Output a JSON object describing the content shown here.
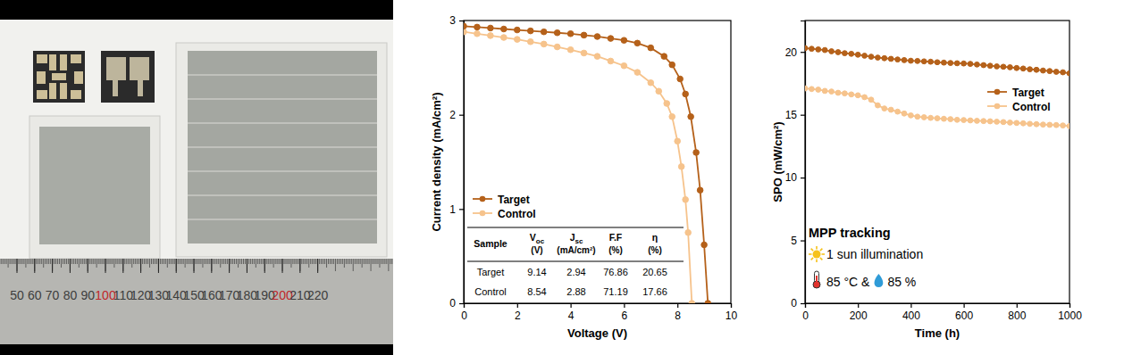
{
  "photo": {
    "xlim": [
      40.4,
      262.6
    ],
    "ruler_labels": [
      50,
      60,
      70,
      80,
      90,
      100,
      110,
      120,
      130,
      140,
      150,
      160,
      170,
      180,
      190,
      200,
      210,
      220
    ]
  },
  "chart_data": [
    {
      "type": "line",
      "xlabel": "Voltage (V)",
      "ylabel": "Current density (mA/cm²)",
      "xlim": [
        0,
        10
      ],
      "xticks": [
        0,
        2,
        4,
        6,
        8,
        10
      ],
      "ylim": [
        0,
        3
      ],
      "yticks": [
        0,
        1,
        2,
        3
      ],
      "marker": "circle",
      "line_style": "solid",
      "legend": "upper left",
      "series": [
        {
          "name": "Target",
          "color": "#b5611a",
          "x": [
            0,
            0.5,
            1,
            1.5,
            2,
            2.5,
            3,
            3.5,
            4,
            4.5,
            5,
            5.5,
            6,
            6.5,
            7,
            7.5,
            7.8,
            8.1,
            8.3,
            8.5,
            8.7,
            8.85,
            9.0,
            9.14
          ],
          "values": [
            2.94,
            2.93,
            2.92,
            2.91,
            2.9,
            2.89,
            2.88,
            2.87,
            2.86,
            2.845,
            2.83,
            2.81,
            2.79,
            2.76,
            2.71,
            2.62,
            2.53,
            2.38,
            2.22,
            1.98,
            1.6,
            1.2,
            0.62,
            0
          ]
        },
        {
          "name": "Control",
          "color": "#f6c38c",
          "x": [
            0,
            0.5,
            1,
            1.5,
            2,
            2.5,
            3,
            3.5,
            4,
            4.5,
            5,
            5.5,
            6,
            6.5,
            7,
            7.3,
            7.6,
            7.8,
            8.0,
            8.15,
            8.3,
            8.4,
            8.54
          ],
          "values": [
            2.88,
            2.86,
            2.84,
            2.82,
            2.8,
            2.775,
            2.75,
            2.72,
            2.69,
            2.655,
            2.62,
            2.57,
            2.52,
            2.45,
            2.34,
            2.25,
            2.12,
            1.98,
            1.72,
            1.45,
            1.1,
            0.75,
            0
          ]
        }
      ],
      "table": {
        "columns": [
          {
            "label": "Sample"
          },
          {
            "label": "V",
            "sub": "oc",
            "unit": "(V)"
          },
          {
            "label": "J",
            "sub": "sc",
            "unit": "(mA/cm²)"
          },
          {
            "label": "F.F",
            "unit": "(%)"
          },
          {
            "label": "η",
            "unit": "(%)"
          }
        ],
        "rows": [
          [
            "Target",
            9.14,
            2.94,
            76.86,
            20.65
          ],
          [
            "Control",
            8.54,
            2.88,
            71.19,
            17.66
          ]
        ]
      }
    },
    {
      "type": "line",
      "xlabel": "Time (h)",
      "ylabel": "SPO (mW/cm²)",
      "xlim": [
        0,
        1000
      ],
      "xticks": [
        0,
        200,
        400,
        600,
        800,
        1000
      ],
      "ylim": [
        0,
        22.5
      ],
      "yticks": [
        0,
        5,
        10,
        15,
        20
      ],
      "marker": "circle",
      "line_style": "solid",
      "legend": "upper right",
      "x": [
        0,
        25,
        50,
        75,
        100,
        125,
        150,
        175,
        200,
        225,
        250,
        275,
        300,
        325,
        350,
        375,
        400,
        425,
        450,
        475,
        500,
        525,
        550,
        575,
        600,
        625,
        650,
        675,
        700,
        725,
        750,
        775,
        800,
        825,
        850,
        875,
        900,
        925,
        950,
        975,
        1000
      ],
      "series": [
        {
          "name": "Target",
          "color": "#b5611a",
          "values": [
            20.3,
            20.25,
            20.2,
            20.15,
            20.05,
            19.98,
            19.9,
            19.85,
            19.78,
            19.7,
            19.62,
            19.55,
            19.5,
            19.45,
            19.4,
            19.35,
            19.3,
            19.28,
            19.25,
            19.22,
            19.18,
            19.15,
            19.12,
            19.1,
            19.08,
            19.05,
            19.0,
            18.95,
            18.9,
            18.85,
            18.82,
            18.78,
            18.72,
            18.68,
            18.62,
            18.58,
            18.52,
            18.48,
            18.42,
            18.38,
            18.3
          ]
        },
        {
          "name": "Control",
          "color": "#f6c38c",
          "values": [
            17.1,
            17.05,
            17.0,
            16.9,
            16.85,
            16.75,
            16.7,
            16.62,
            16.55,
            16.4,
            16.2,
            15.75,
            15.5,
            15.4,
            15.25,
            15.1,
            14.95,
            14.85,
            14.8,
            14.75,
            14.72,
            14.68,
            14.65,
            14.6,
            14.58,
            14.55,
            14.52,
            14.5,
            14.48,
            14.45,
            14.42,
            14.38,
            14.35,
            14.32,
            14.28,
            14.25,
            14.22,
            14.2,
            14.18,
            14.15,
            14.1
          ]
        }
      ],
      "annotations": [
        "MPP tracking",
        "1 sun illumination",
        "85 °C &",
        "85 %"
      ]
    }
  ]
}
